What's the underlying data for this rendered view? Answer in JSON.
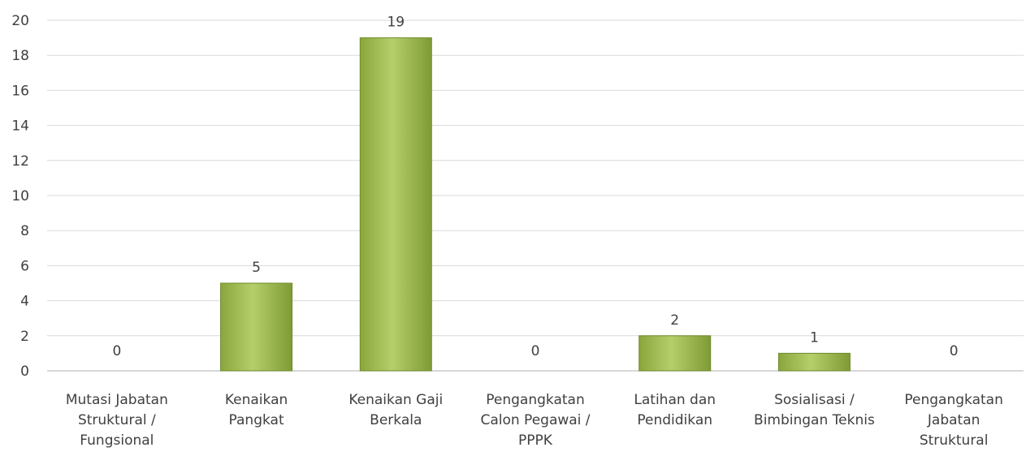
{
  "chart_data": {
    "type": "bar",
    "categories": [
      [
        "Mutasi Jabatan",
        "Struktural /",
        "Fungsional"
      ],
      [
        "Kenaikan",
        "Pangkat"
      ],
      [
        "Kenaikan Gaji",
        "Berkala"
      ],
      [
        "Pengangkatan",
        "Calon Pegawai /",
        "PPPK"
      ],
      [
        "Latihan dan",
        "Pendidikan"
      ],
      [
        "Sosialisasi /",
        "Bimbingan Teknis"
      ],
      [
        "Pengangkatan",
        "Jabatan",
        "Struktural"
      ]
    ],
    "values": [
      0,
      5,
      19,
      0,
      2,
      1,
      0
    ],
    "data_labels": [
      "0",
      "5",
      "19",
      "0",
      "2",
      "1",
      "0"
    ],
    "yticks": [
      "0",
      "2",
      "4",
      "6",
      "8",
      "10",
      "12",
      "14",
      "16",
      "18",
      "20"
    ],
    "ylim": [
      0,
      20
    ],
    "title": "",
    "xlabel": "",
    "ylabel": "",
    "grid": true,
    "legend": "none",
    "colors": {
      "bar_light": "#b5cf6b",
      "bar_dark": "#7f9b35",
      "bar_edge": "#6e8a2c",
      "gridline": "#d9d9d9",
      "text": "#404040"
    }
  }
}
